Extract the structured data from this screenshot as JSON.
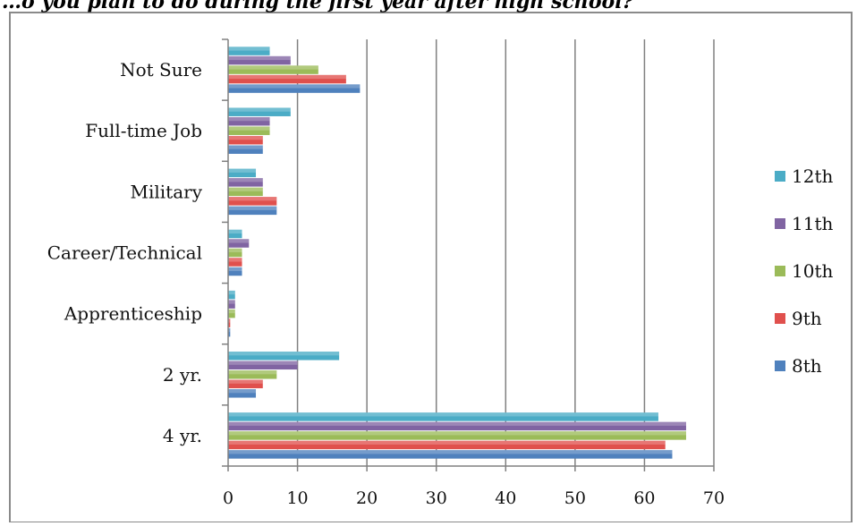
{
  "chart_data": {
    "type": "bar",
    "orientation": "horizontal",
    "title": "…o you plan to do during the first year after high school?",
    "categories": [
      "4 yr.",
      "2 yr.",
      "Apprenticeship",
      "Career/Technical",
      "Military",
      "Full-time Job",
      "Not Sure"
    ],
    "series": [
      {
        "name": "8th",
        "color": "#4F81BD",
        "values": [
          64,
          4,
          0.3,
          2,
          7,
          5,
          19
        ]
      },
      {
        "name": "9th",
        "color": "#E0504D",
        "values": [
          63,
          5,
          0.3,
          2,
          7,
          5,
          17
        ]
      },
      {
        "name": "10th",
        "color": "#9BBB59",
        "values": [
          66,
          7,
          1,
          2,
          5,
          6,
          13
        ]
      },
      {
        "name": "11th",
        "color": "#8064A2",
        "values": [
          66,
          10,
          1,
          3,
          5,
          6,
          9
        ]
      },
      {
        "name": "12th",
        "color": "#4BACC6",
        "values": [
          62,
          16,
          1,
          2,
          4,
          9,
          6
        ]
      }
    ],
    "xlim": [
      0,
      70
    ],
    "xticks": [
      0,
      10,
      20,
      30,
      40,
      50,
      60,
      70
    ],
    "xlabel": "",
    "ylabel": "",
    "grid": "vertical major",
    "legend": "right"
  }
}
